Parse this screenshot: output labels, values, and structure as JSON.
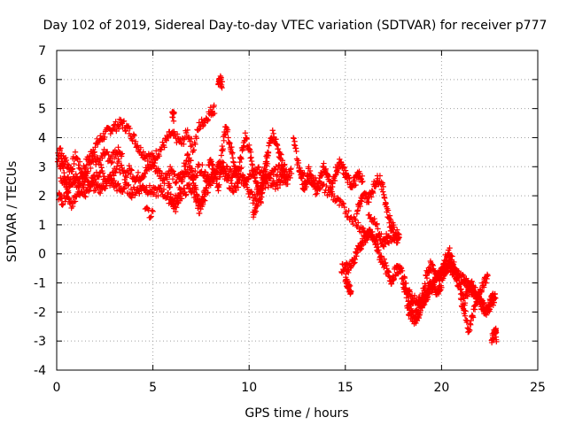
{
  "chart_data": {
    "type": "scatter",
    "title": "Day 102 of 2019, Sidereal Day-to-day VTEC variation (SDTVAR) for receiver p777",
    "xlabel": "GPS time / hours",
    "ylabel": "SDTVAR / TECUs",
    "xlim": [
      0,
      25
    ],
    "ylim": [
      -4,
      7
    ],
    "xticks": [
      0,
      5,
      10,
      15,
      20,
      25
    ],
    "yticks": [
      -4,
      -3,
      -2,
      -1,
      0,
      1,
      2,
      3,
      4,
      5,
      6,
      7
    ],
    "grid": true,
    "marker": "+",
    "color": "#ff0000",
    "series": [
      {
        "name": "SDTVAR",
        "tracks": [
          {
            "x": [
              0.15,
              0.4,
              0.7,
              1.0,
              1.3,
              1.6,
              1.9,
              2.2,
              2.5,
              2.8,
              3.1,
              3.4,
              3.7,
              4.0,
              4.3,
              4.6,
              5.0,
              5.3,
              5.6,
              5.9,
              6.2,
              6.5,
              6.8,
              7.1,
              7.4,
              7.7,
              8.0,
              8.2
            ],
            "y": [
              3.0,
              3.3,
              2.9,
              3.4,
              2.8,
              3.2,
              3.6,
              3.9,
              4.1,
              4.3,
              4.4,
              4.5,
              4.3,
              4.0,
              3.6,
              3.4,
              3.3,
              3.5,
              3.8,
              4.1,
              4.0,
              3.8,
              4.2,
              3.6,
              4.4,
              4.6,
              4.9,
              5.0
            ]
          },
          {
            "x": [
              0.2,
              0.5,
              0.8,
              1.1,
              1.4,
              1.7,
              2.0,
              2.3,
              2.6,
              2.9,
              3.2,
              3.5,
              3.8,
              4.1,
              4.4,
              4.7,
              5.0,
              5.3,
              5.6,
              5.9,
              6.2,
              6.5,
              6.8,
              7.1,
              7.4,
              7.7,
              8.0,
              8.3,
              8.6,
              8.9,
              9.2,
              9.5,
              9.8,
              10.1,
              10.4,
              10.7,
              11.0,
              11.3,
              11.6,
              11.9
            ],
            "y": [
              2.6,
              2.4,
              2.8,
              2.5,
              2.7,
              2.4,
              2.6,
              2.9,
              2.5,
              2.8,
              3.1,
              2.7,
              2.9,
              2.6,
              2.7,
              2.9,
              3.1,
              2.8,
              2.6,
              2.9,
              2.5,
              2.7,
              2.9,
              2.6,
              3.0,
              2.8,
              2.5,
              2.9,
              3.1,
              2.8,
              2.7,
              2.9,
              2.6,
              2.8,
              2.9,
              2.7,
              2.6,
              2.8,
              2.9,
              2.7
            ]
          },
          {
            "x": [
              0.1,
              0.3,
              0.6,
              0.9,
              1.2,
              1.5,
              1.8,
              2.1,
              2.4,
              2.7,
              3.0,
              3.3,
              3.6,
              3.9,
              4.2,
              4.5,
              4.8,
              5.1,
              5.4,
              5.7,
              6.0,
              6.3,
              6.6,
              6.9,
              7.2,
              7.5,
              7.8,
              8.1,
              8.4,
              8.7,
              9.0,
              9.3,
              9.6,
              9.9,
              10.2,
              10.5,
              10.8,
              11.1,
              11.4,
              11.7,
              12.0
            ],
            "y": [
              2.0,
              1.8,
              2.2,
              2.6,
              2.3,
              2.1,
              2.4,
              2.2,
              2.3,
              2.5,
              2.4,
              2.2,
              2.3,
              2.1,
              2.2,
              2.3,
              2.2,
              2.1,
              2.2,
              2.0,
              1.8,
              1.9,
              2.1,
              2.3,
              2.0,
              1.6,
              2.2,
              2.6,
              3.0,
              2.7,
              2.4,
              2.2,
              2.6,
              2.3,
              1.9,
              2.2,
              2.4,
              2.5,
              2.3,
              2.6,
              2.4
            ]
          },
          {
            "x": [
              0.05,
              0.2,
              0.35,
              0.5,
              0.7,
              1.0,
              1.3,
              1.6,
              1.9,
              2.2,
              2.5,
              2.8,
              3.1,
              3.4
            ],
            "y": [
              3.3,
              3.6,
              3.0,
              2.4,
              1.6,
              1.9,
              2.3,
              2.9,
              3.3,
              3.1,
              3.5,
              3.2,
              3.6,
              3.3
            ]
          },
          {
            "x": [
              5.8,
              6.0,
              6.2,
              6.4,
              6.6,
              6.8,
              7.0,
              7.2,
              7.4,
              7.6,
              7.8,
              8.0,
              8.2,
              8.4,
              8.6,
              8.8,
              9.0,
              9.2,
              9.4,
              9.6,
              9.8,
              10.0,
              10.2,
              10.4,
              10.6,
              10.8,
              11.0
            ],
            "y": [
              2.4,
              1.8,
              1.6,
              2.2,
              2.9,
              3.4,
              3.0,
              2.2,
              1.5,
              1.9,
              2.6,
              3.3,
              2.8,
              2.2,
              3.6,
              4.4,
              3.8,
              3.2,
              2.6,
              3.4,
              4.1,
              3.6,
              3.0,
              2.4,
              1.8,
              2.6,
              3.4
            ]
          },
          {
            "x": [
              10.2,
              10.4,
              10.6,
              10.8,
              11.0,
              11.2,
              11.4,
              11.6,
              11.8,
              12.0,
              12.2
            ],
            "y": [
              1.3,
              1.7,
              2.2,
              2.9,
              3.6,
              4.1,
              3.9,
              3.4,
              3.0,
              2.6,
              2.8
            ]
          },
          {
            "x": [
              12.3,
              12.5,
              12.7,
              12.9,
              13.1,
              13.3,
              13.5,
              13.7,
              13.9,
              14.1,
              14.3,
              14.5,
              14.7,
              14.9,
              15.1,
              15.3,
              15.5,
              15.7,
              15.9
            ],
            "y": [
              4.1,
              3.2,
              2.6,
              2.2,
              2.9,
              2.5,
              2.1,
              2.7,
              3.0,
              2.6,
              2.3,
              2.8,
              3.1,
              2.9,
              2.6,
              2.4,
              2.5,
              2.7,
              2.6
            ]
          },
          {
            "x": [
              12.6,
              13.0,
              13.4,
              13.8,
              14.2,
              14.6,
              15.0,
              15.4,
              15.8,
              16.2,
              16.6,
              17.0,
              17.4,
              17.8
            ],
            "y": [
              2.8,
              2.6,
              2.5,
              2.3,
              2.1,
              1.8,
              1.5,
              1.2,
              0.9,
              0.7,
              0.5,
              0.4,
              0.6,
              0.5
            ]
          },
          {
            "x": [
              15.6,
              15.8,
              16.0,
              16.2,
              16.4,
              16.6,
              16.8,
              17.0,
              17.2,
              17.4,
              17.6,
              17.8
            ],
            "y": [
              1.5,
              1.8,
              2.0,
              1.9,
              2.2,
              2.5,
              2.6,
              2.1,
              1.4,
              1.0,
              0.7,
              0.6
            ]
          },
          {
            "x": [
              14.8,
              15.0,
              15.2,
              15.4,
              15.6,
              15.8,
              16.0,
              16.2,
              16.4,
              16.6,
              16.8,
              17.0,
              17.2,
              17.4,
              17.6,
              17.8,
              18.0,
              18.2,
              18.4,
              18.6,
              18.8
            ],
            "y": [
              -0.5,
              -0.4,
              -0.5,
              -0.3,
              0.1,
              0.3,
              0.5,
              0.7,
              0.6,
              0.3,
              -0.1,
              -0.3,
              -0.7,
              -0.9,
              -0.6,
              -0.5,
              -0.8,
              -1.2,
              -1.5,
              -1.6,
              -1.8
            ]
          },
          {
            "x": [
              15.0,
              15.1,
              15.2,
              15.3
            ],
            "y": [
              -0.8,
              -1.0,
              -1.2,
              -1.3
            ]
          },
          {
            "x": [
              18.2,
              18.4,
              18.6,
              18.8,
              19.0,
              19.2,
              19.4,
              19.6,
              19.8,
              20.0,
              20.2,
              20.4,
              20.6,
              20.8,
              21.0,
              21.2,
              21.4,
              21.6,
              21.8,
              22.0,
              22.2,
              22.4,
              22.6,
              22.8
            ],
            "y": [
              -1.9,
              -2.1,
              -2.2,
              -1.9,
              -1.5,
              -0.8,
              -0.4,
              -0.5,
              -0.9,
              -0.6,
              -0.2,
              0.1,
              -0.3,
              -0.9,
              -1.3,
              -1.6,
              -1.2,
              -1.0,
              -1.4,
              -1.7,
              -1.9,
              -2.0,
              -1.7,
              -1.5
            ]
          },
          {
            "x": [
              18.8,
              19.0,
              19.2,
              19.4,
              19.6,
              19.8,
              20.0,
              20.2,
              20.4,
              20.6,
              20.8,
              21.0,
              21.2,
              21.4,
              21.6,
              21.8,
              22.0,
              22.2,
              22.4,
              22.6,
              22.8
            ],
            "y": [
              -1.6,
              -1.8,
              -1.5,
              -1.2,
              -1.0,
              -0.8,
              -0.7,
              -0.5,
              -0.4,
              -0.6,
              -0.7,
              -0.8,
              -0.9,
              -1.1,
              -1.3,
              -1.5,
              -1.6,
              -1.8,
              -1.9,
              -1.6,
              -1.4
            ]
          },
          {
            "x": [
              18.0,
              18.2,
              18.4,
              18.6,
              18.8,
              19.0,
              19.2,
              19.4,
              19.6,
              19.8,
              20.0,
              20.2,
              20.4,
              20.6,
              20.8
            ],
            "y": [
              -1.0,
              -1.4,
              -1.9,
              -2.3,
              -2.1,
              -1.6,
              -1.3,
              -1.1,
              -1.2,
              -1.4,
              -1.0,
              -0.6,
              -0.3,
              -0.5,
              -0.8
            ]
          },
          {
            "x": [
              21.0,
              21.2,
              21.4,
              21.6,
              21.8,
              22.0,
              22.2,
              22.4
            ],
            "y": [
              -1.6,
              -2.0,
              -2.6,
              -2.2,
              -1.6,
              -1.3,
              -1.0,
              -0.8
            ]
          },
          {
            "x": [
              22.6,
              22.7,
              22.8,
              22.85
            ],
            "y": [
              -3.0,
              -2.8,
              -2.6,
              -2.9
            ]
          },
          {
            "x": [
              8.4,
              8.5,
              8.6
            ],
            "y": [
              5.9,
              6.0,
              5.8
            ]
          },
          {
            "x": [
              6.0,
              6.1
            ],
            "y": [
              4.8,
              4.7
            ]
          },
          {
            "x": [
              4.6,
              5.0
            ],
            "y": [
              1.5,
              1.3
            ]
          },
          {
            "x": [
              16.2,
              16.6,
              17.0,
              17.4
            ],
            "y": [
              1.2,
              1.0,
              0.4,
              0.9
            ]
          }
        ]
      }
    ]
  }
}
